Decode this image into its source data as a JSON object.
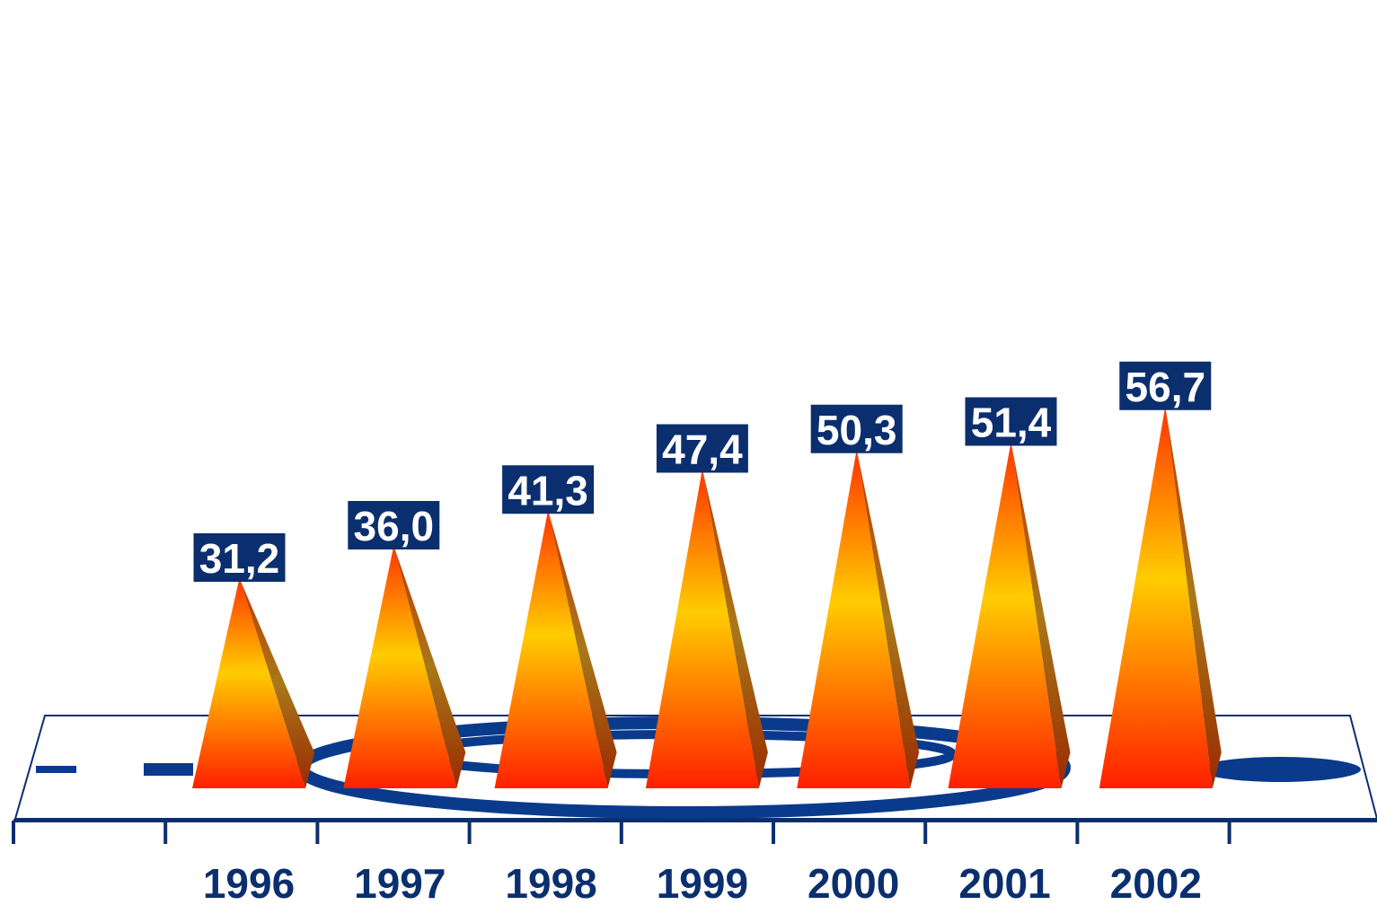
{
  "chart_data": {
    "type": "bar",
    "categories": [
      "1996",
      "1997",
      "1998",
      "1999",
      "2000",
      "2001",
      "2002"
    ],
    "values": [
      31.2,
      36.0,
      41.3,
      47.4,
      50.3,
      51.4,
      56.7
    ],
    "data_labels": [
      "31,2",
      "36,0",
      "41,3",
      "47,4",
      "50,3",
      "51,4",
      "56,7"
    ],
    "title": "",
    "xlabel": "",
    "ylabel": "",
    "legend": "none",
    "grid": false,
    "bar_shape": "pyramid",
    "colors": {
      "bar_base": "#ff2200",
      "bar_mid": "#ffcc00",
      "bar_side": "#a85a10",
      "label_box": "#0b2f6e",
      "label_text": "#ffffff",
      "axis": "#0b2f6e",
      "floor_logo": "#0a3a8c"
    }
  }
}
